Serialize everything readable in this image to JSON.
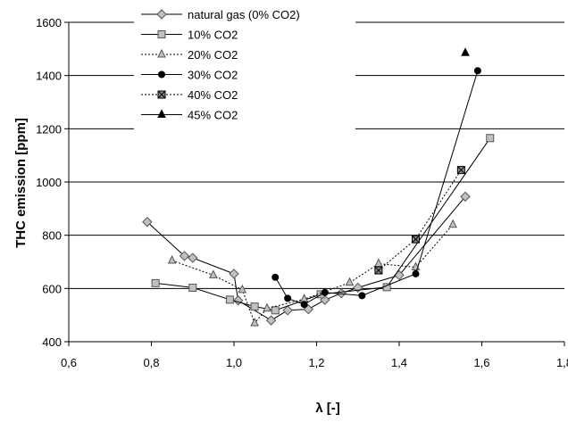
{
  "chart_data": {
    "type": "scatter",
    "xlabel": "λ [-]",
    "ylabel": "THC emission [ppm]",
    "xlim": [
      0.6,
      1.8
    ],
    "ylim": [
      400,
      1600
    ],
    "xticks": [
      "0,6",
      "0,8",
      "1,0",
      "1,2",
      "1,4",
      "1,6",
      "1,8"
    ],
    "yticks": [
      "400",
      "600",
      "800",
      "1000",
      "1200",
      "1400",
      "1600"
    ],
    "grid": "horizontal",
    "legend_position": "top-left",
    "series": [
      {
        "name": "natural gas (0% CO2)",
        "marker": "diamond",
        "fill": "#c0c0c0",
        "stroke": "#555555",
        "line": "solid",
        "points": [
          [
            0.79,
            850
          ],
          [
            0.88,
            722
          ],
          [
            0.9,
            715
          ],
          [
            1.0,
            655
          ],
          [
            1.01,
            555
          ],
          [
            1.09,
            480
          ],
          [
            1.13,
            518
          ],
          [
            1.18,
            522
          ],
          [
            1.22,
            557
          ],
          [
            1.26,
            582
          ],
          [
            1.3,
            603
          ],
          [
            1.4,
            650
          ],
          [
            1.56,
            945
          ]
        ]
      },
      {
        "name": "10% CO2",
        "marker": "square",
        "fill": "#c0c0c0",
        "stroke": "#555555",
        "line": "solid",
        "points": [
          [
            0.81,
            620
          ],
          [
            0.9,
            603
          ],
          [
            0.99,
            558
          ],
          [
            1.05,
            532
          ],
          [
            1.1,
            518
          ],
          [
            1.21,
            578
          ],
          [
            1.37,
            605
          ],
          [
            1.62,
            1165
          ]
        ]
      },
      {
        "name": "20% CO2",
        "marker": "triangle",
        "fill": "#c0c0c0",
        "stroke": "#555555",
        "line": "dotted",
        "points": [
          [
            0.85,
            705
          ],
          [
            0.95,
            650
          ],
          [
            1.02,
            595
          ],
          [
            1.05,
            470
          ],
          [
            1.08,
            525
          ],
          [
            1.17,
            560
          ],
          [
            1.28,
            622
          ],
          [
            1.35,
            693
          ],
          [
            1.44,
            680
          ],
          [
            1.53,
            840
          ]
        ]
      },
      {
        "name": "30% CO2",
        "marker": "circle",
        "fill": "#000000",
        "stroke": "#000000",
        "line": "solid",
        "points": [
          [
            1.1,
            642
          ],
          [
            1.13,
            563
          ],
          [
            1.17,
            540
          ],
          [
            1.22,
            585
          ],
          [
            1.31,
            573
          ],
          [
            1.44,
            655
          ],
          [
            1.59,
            1418
          ]
        ]
      },
      {
        "name": "40% CO2",
        "marker": "xsquare",
        "fill": "#888888",
        "stroke": "#000000",
        "line": "dotted",
        "points": [
          [
            1.35,
            668
          ],
          [
            1.44,
            785
          ],
          [
            1.55,
            1045
          ]
        ]
      },
      {
        "name": "45% CO2",
        "marker": "triangle",
        "fill": "#000000",
        "stroke": "#000000",
        "line": "solid",
        "points": [
          [
            1.56,
            1485
          ]
        ]
      }
    ]
  }
}
